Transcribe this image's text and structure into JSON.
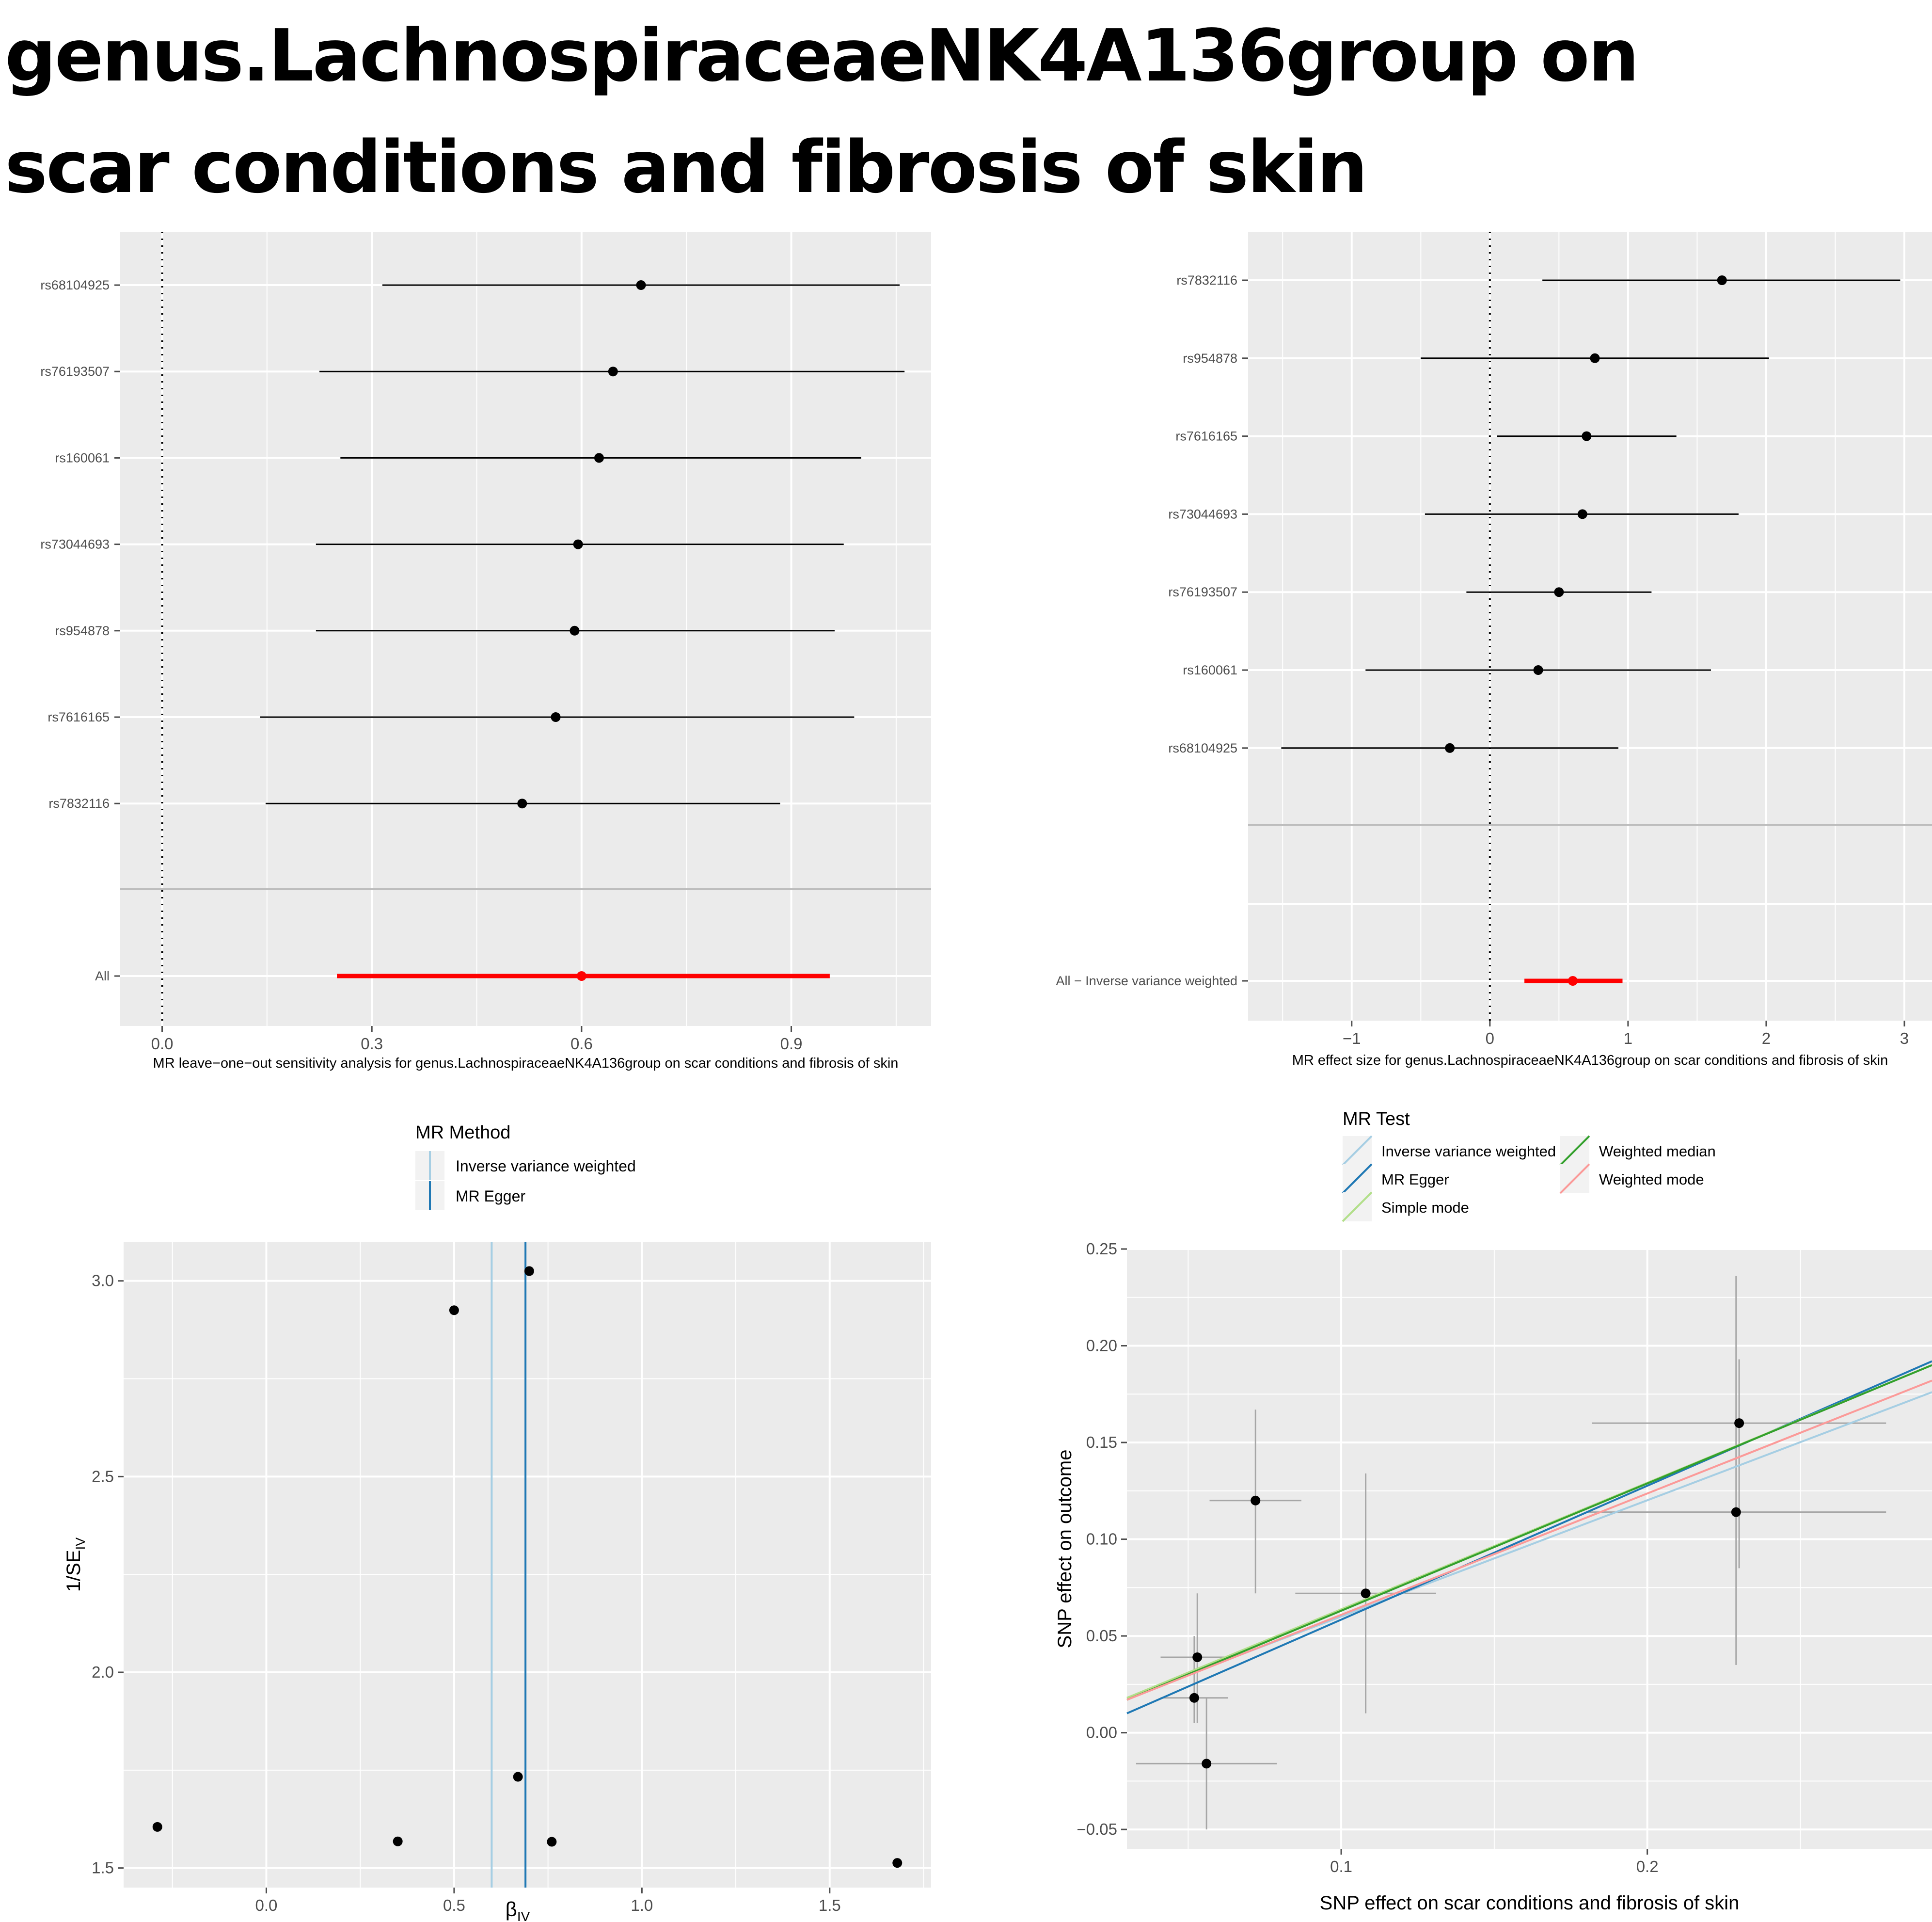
{
  "title": {
    "line1": "genus.LachnospiraceaeNK4A136group on",
    "line2": "scar conditions and fibrosis of skin"
  },
  "colors": {
    "panel_bg": "#ebebeb",
    "grid": "#ffffff",
    "ivw": "#a6cee3",
    "mr_egger": "#1f78b4",
    "simple_mode": "#b2df8a",
    "weighted_median": "#33a02c",
    "weighted_mode": "#fb9a99",
    "highlight": "#ff0000"
  },
  "chart_data": [
    {
      "id": "leave_one_out",
      "type": "forest",
      "title": "",
      "xlabel": "MR leave−one−out sensitivity analysis for genus.LachnospiraceaeNK4A136group on scar conditions and fibrosis of skin",
      "ylabel": "",
      "xlim": [
        -0.06,
        1.1
      ],
      "xticks": [
        0.0,
        0.3,
        0.6,
        0.9
      ],
      "xtick_labels": [
        "0.0",
        "0.3",
        "0.6",
        "0.9"
      ],
      "grid": true,
      "rows": [
        {
          "label": "rs68104925",
          "b": 0.685,
          "lo": 0.315,
          "hi": 1.055
        },
        {
          "label": "rs76193507",
          "b": 0.645,
          "lo": 0.225,
          "hi": 1.062
        },
        {
          "label": "rs160061",
          "b": 0.625,
          "lo": 0.255,
          "hi": 1.0
        },
        {
          "label": "rs73044693",
          "b": 0.595,
          "lo": 0.22,
          "hi": 0.975
        },
        {
          "label": "rs954878",
          "b": 0.59,
          "lo": 0.22,
          "hi": 0.962
        },
        {
          "label": "rs7616165",
          "b": 0.563,
          "lo": 0.14,
          "hi": 0.99
        },
        {
          "label": "rs7832116",
          "b": 0.515,
          "lo": 0.148,
          "hi": 0.884
        }
      ],
      "summary": {
        "label": "All",
        "b": 0.6,
        "lo": 0.25,
        "hi": 0.955
      }
    },
    {
      "id": "effect_size",
      "type": "forest",
      "title": "",
      "xlabel": "MR effect size for genus.LachnospiraceaeNK4A136group on scar conditions and fibrosis of skin",
      "ylabel": "",
      "xlim": [
        -1.75,
        3.2
      ],
      "xticks": [
        -1,
        0,
        1,
        2,
        3
      ],
      "xtick_labels": [
        "−1",
        "0",
        "1",
        "2",
        "3"
      ],
      "grid": true,
      "rows": [
        {
          "label": "rs7832116",
          "b": 1.68,
          "lo": 0.38,
          "hi": 2.97
        },
        {
          "label": "rs954878",
          "b": 0.76,
          "lo": -0.5,
          "hi": 2.02
        },
        {
          "label": "rs7616165",
          "b": 0.7,
          "lo": 0.05,
          "hi": 1.35
        },
        {
          "label": "rs73044693",
          "b": 0.67,
          "lo": -0.47,
          "hi": 1.8
        },
        {
          "label": "rs76193507",
          "b": 0.5,
          "lo": -0.17,
          "hi": 1.17
        },
        {
          "label": "rs160061",
          "b": 0.35,
          "lo": -0.9,
          "hi": 1.6
        },
        {
          "label": "rs68104925",
          "b": -0.29,
          "lo": -1.51,
          "hi": 0.93
        }
      ],
      "summary": {
        "label": "All − Inverse variance weighted",
        "b": 0.6,
        "lo": 0.25,
        "hi": 0.96
      }
    },
    {
      "id": "funnel",
      "type": "scatter",
      "title": "",
      "xlabel": "β",
      "xlabel_sub": "IV",
      "ylabel": "1/SE",
      "ylabel_sub": "IV",
      "xlim": [
        -0.38,
        1.77
      ],
      "ylim": [
        1.45,
        3.1
      ],
      "xticks": [
        0.0,
        0.5,
        1.0,
        1.5
      ],
      "xtick_labels": [
        "0.0",
        "0.5",
        "1.0",
        "1.5"
      ],
      "yticks": [
        1.5,
        2.0,
        2.5,
        3.0
      ],
      "ytick_labels": [
        "1.5",
        "2.0",
        "2.5",
        "3.0"
      ],
      "grid": true,
      "points": [
        {
          "x": -0.29,
          "y": 1.605
        },
        {
          "x": 0.35,
          "y": 1.568
        },
        {
          "x": 0.5,
          "y": 2.925
        },
        {
          "x": 0.67,
          "y": 1.733
        },
        {
          "x": 0.7,
          "y": 3.025
        },
        {
          "x": 0.76,
          "y": 1.567
        },
        {
          "x": 1.68,
          "y": 1.513
        }
      ],
      "lines": [
        {
          "name": "Inverse variance weighted",
          "x": 0.6,
          "color": "#a6cee3"
        },
        {
          "name": "MR Egger",
          "x": 0.69,
          "color": "#1f78b4"
        }
      ],
      "legend": {
        "title": "MR Method",
        "position": "top",
        "entries": [
          "Inverse variance weighted",
          "MR Egger"
        ]
      }
    },
    {
      "id": "scatter_mr",
      "type": "scatter",
      "title": "",
      "xlabel": "SNP effect on scar conditions and fibrosis of skin",
      "ylabel": "SNP effect on outcome",
      "xlim": [
        0.03,
        0.293
      ],
      "ylim": [
        -0.06,
        0.25
      ],
      "xticks": [
        0.1,
        0.2
      ],
      "xtick_labels": [
        "0.1",
        "0.2"
      ],
      "yticks": [
        -0.05,
        0.0,
        0.05,
        0.1,
        0.15,
        0.2,
        0.25
      ],
      "ytick_labels": [
        "−0.05",
        "0.00",
        "0.05",
        "0.10",
        "0.15",
        "0.20",
        "0.25"
      ],
      "grid": true,
      "points": [
        {
          "x": 0.052,
          "y": 0.018,
          "xlo": 0.041,
          "xhi": 0.063,
          "ylo": 0.005,
          "yhi": 0.05
        },
        {
          "x": 0.053,
          "y": 0.039,
          "xlo": 0.041,
          "xhi": 0.065,
          "ylo": 0.005,
          "yhi": 0.072
        },
        {
          "x": 0.056,
          "y": -0.016,
          "xlo": 0.033,
          "xhi": 0.079,
          "ylo": -0.05,
          "yhi": 0.018
        },
        {
          "x": 0.072,
          "y": 0.12,
          "xlo": 0.057,
          "xhi": 0.087,
          "ylo": 0.072,
          "yhi": 0.167
        },
        {
          "x": 0.108,
          "y": 0.072,
          "xlo": 0.085,
          "xhi": 0.131,
          "ylo": 0.01,
          "yhi": 0.134
        },
        {
          "x": 0.23,
          "y": 0.16,
          "xlo": 0.182,
          "xhi": 0.278,
          "ylo": 0.085,
          "yhi": 0.193
        },
        {
          "x": 0.229,
          "y": 0.114,
          "xlo": 0.18,
          "xhi": 0.278,
          "ylo": 0.035,
          "yhi": 0.236
        }
      ],
      "lines": [
        {
          "name": "Inverse variance weighted",
          "x1": 0.03,
          "y1": 0.018,
          "x2": 0.293,
          "y2": 0.176,
          "color": "#a6cee3"
        },
        {
          "name": "MR Egger",
          "x1": 0.03,
          "y1": 0.01,
          "x2": 0.293,
          "y2": 0.192,
          "color": "#1f78b4"
        },
        {
          "name": "Simple mode",
          "x1": 0.03,
          "y1": 0.018,
          "x2": 0.293,
          "y2": 0.19,
          "color": "#b2df8a"
        },
        {
          "name": "Weighted median",
          "x1": 0.03,
          "y1": 0.017,
          "x2": 0.293,
          "y2": 0.19,
          "color": "#33a02c"
        },
        {
          "name": "Weighted mode",
          "x1": 0.03,
          "y1": 0.017,
          "x2": 0.293,
          "y2": 0.182,
          "color": "#fb9a99"
        }
      ],
      "legend": {
        "title": "MR Test",
        "position": "top",
        "entries": [
          "Inverse variance weighted",
          "MR Egger",
          "Simple mode",
          "Weighted median",
          "Weighted mode"
        ]
      }
    }
  ]
}
